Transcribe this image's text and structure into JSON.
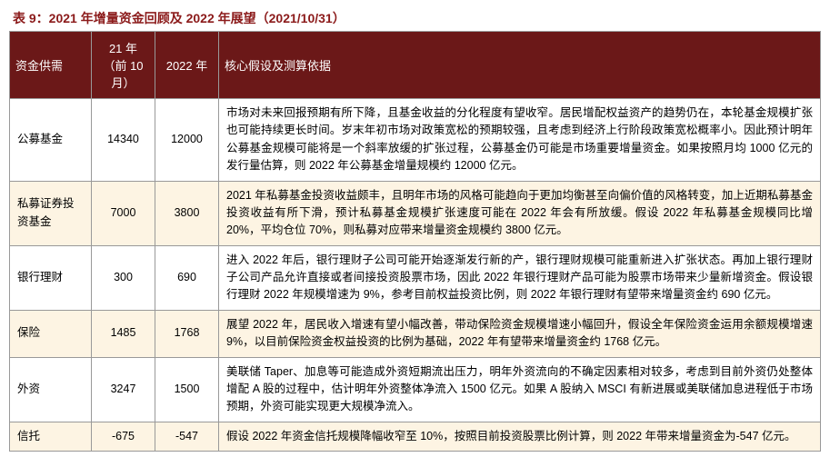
{
  "title": "表 9：2021 年增量资金回顾及 2022 年展望（2021/10/31）",
  "title_color": "#8b1a1a",
  "header_bg": "#6b1818",
  "header_fg": "#ffffff",
  "row_alt_bg": "#fdf4e3",
  "border_color": "#999999",
  "columns": {
    "c0": "资金供需",
    "c1": "21 年（前 10月）",
    "c2": "2022 年",
    "c3": "核心假设及测算依据"
  },
  "rows": [
    {
      "label": "公募基金",
      "y21": "14340",
      "y22": "12000",
      "desc": "市场对未来回报预期有所下降，且基金收益的分化程度有望收窄。居民增配权益资产的趋势仍在，本轮基金规模扩张也可能持续更长时间。岁末年初市场对政策宽松的预期较强，且考虑到经济上行阶段政策宽松概率小。因此预计明年公募基金规模可能将是一个斜率放缓的扩张过程，公募基金仍可能是市场重要增量资金。如果按照月均 1000 亿元的发行量估算，则 2022 年公募基金增量规模约 12000 亿元。"
    },
    {
      "label": "私募证券投资基金",
      "y21": "7000",
      "y22": "3800",
      "desc": "2021 年私募基金投资收益颇丰，且明年市场的风格可能趋向于更加均衡甚至向偏价值的风格转变，加上近期私募基金投资收益有所下滑，预计私募基金规模扩张速度可能在 2022 年会有所放缓。假设 2022 年私募基金规模同比增 20%，平均仓位 70%，则私募对应带来增量资金规模约 3800 亿元。"
    },
    {
      "label": "银行理财",
      "y21": "300",
      "y22": "690",
      "desc": "进入 2022 年后，银行理财子公司可能开始逐渐发行新的产，银行理财规模可能重新进入扩张状态。再加上银行理财子公司产品允许直接或者间接投资股票市场，因此 2022 年银行理财产品可能为股票市场带来少量新增资金。假设银行理财 2022 年规模增速为 9%，参考目前权益投资比例，则 2022 年银行理财有望带来增量资金约 690 亿元。"
    },
    {
      "label": "保险",
      "y21": "1485",
      "y22": "1768",
      "desc": "展望 2022 年，居民收入增速有望小幅改善，带动保险资金规模增速小幅回升，假设全年保险资金运用余额规模增速 9%，以目前保险资金权益投资的比例为基础，2022 年有望带来增量资金约 1768 亿元。"
    },
    {
      "label": "外资",
      "y21": "3247",
      "y22": "1500",
      "desc": "美联储 Taper、加息等可能造成外资短期流出压力，明年外资流向的不确定因素相对较多，考虑到目前外资仍处整体增配 A 股的过程中，估计明年外资整体净流入 1500 亿元。如果 A 股纳入 MSCI 有新进展或美联储加息进程低于市场预期，外资可能实现更大规模净流入。"
    },
    {
      "label": "信托",
      "y21": "-675",
      "y22": "-547",
      "desc": "假设 2022 年资金信托规模降幅收窄至 10%，按照目前投资股票比例计算，则 2022 年带来增量资金为-547 亿元。"
    }
  ]
}
